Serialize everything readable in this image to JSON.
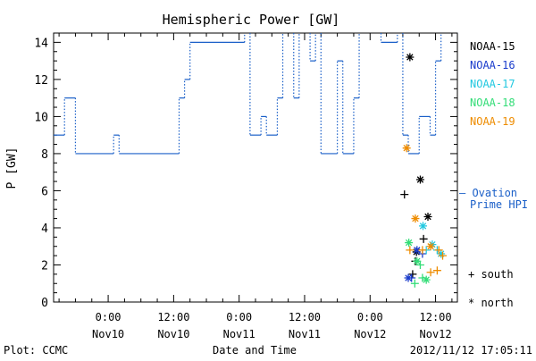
{
  "chart_data": {
    "type": "line",
    "title": "Hemispheric Power [GW]",
    "xlabel": "Date and Time",
    "ylabel": "P [GW]",
    "ylim": [
      0,
      14.5
    ],
    "xlim_hours": [
      -10,
      64
    ],
    "x_units": "hours since 2012-11-10 00:00 UT",
    "yticks": [
      0,
      2,
      4,
      6,
      8,
      10,
      12,
      14
    ],
    "xticks": [
      {
        "h": 0,
        "time": "0:00",
        "date": "Nov10"
      },
      {
        "h": 12,
        "time": "12:00",
        "date": "Nov10"
      },
      {
        "h": 24,
        "time": "0:00",
        "date": "Nov11"
      },
      {
        "h": 36,
        "time": "12:00",
        "date": "Nov11"
      },
      {
        "h": 48,
        "time": "0:00",
        "date": "Nov12"
      },
      {
        "h": 60,
        "time": "12:00",
        "date": "Nov12"
      }
    ],
    "ovation_label_line1": "– Ovation",
    "ovation_label_line2": "Prime HPI",
    "ovation_series": [
      [
        -10,
        9
      ],
      [
        -8,
        11
      ],
      [
        -6,
        8
      ],
      [
        1,
        9
      ],
      [
        2,
        8
      ],
      [
        13,
        11
      ],
      [
        14,
        12
      ],
      [
        15,
        14
      ],
      [
        25,
        15
      ],
      [
        26,
        9
      ],
      [
        28,
        10
      ],
      [
        29,
        9
      ],
      [
        31,
        11
      ],
      [
        32,
        15
      ],
      [
        34,
        11
      ],
      [
        35,
        15
      ],
      [
        37,
        13
      ],
      [
        38,
        15
      ],
      [
        39,
        8
      ],
      [
        42,
        13
      ],
      [
        43,
        8
      ],
      [
        45,
        11
      ],
      [
        46,
        15
      ],
      [
        50,
        14
      ],
      [
        53,
        15
      ],
      [
        54,
        9
      ],
      [
        55,
        8
      ],
      [
        57,
        10
      ],
      [
        59,
        9
      ],
      [
        60,
        13
      ],
      [
        61,
        15
      ],
      [
        64,
        15
      ]
    ],
    "satellites": [
      {
        "name": "NOAA-15",
        "color": "#000000",
        "north": [
          [
            55.3,
            13.2
          ],
          [
            57.2,
            6.6
          ],
          [
            58.6,
            4.6
          ],
          [
            56.5,
            2.7
          ]
        ],
        "south": [
          [
            54.3,
            5.8
          ],
          [
            57.8,
            3.4
          ],
          [
            56.3,
            2.2
          ],
          [
            55.8,
            1.5
          ]
        ]
      },
      {
        "name": "NOAA-16",
        "color": "#1a3ccc",
        "north": [
          [
            55.0,
            1.3
          ],
          [
            56.6,
            2.8
          ]
        ],
        "south": [
          [
            55.6,
            1.3
          ],
          [
            57.6,
            2.6
          ]
        ]
      },
      {
        "name": "NOAA-17",
        "color": "#22c8e0",
        "north": [
          [
            57.7,
            4.1
          ],
          [
            59.4,
            3.1
          ],
          [
            61.0,
            2.6
          ]
        ],
        "south": [
          [
            58.3,
            2.8
          ],
          [
            60.3,
            2.8
          ]
        ]
      },
      {
        "name": "NOAA-18",
        "color": "#33dd77",
        "north": [
          [
            55.1,
            3.2
          ],
          [
            56.6,
            2.2
          ],
          [
            58.3,
            1.2
          ]
        ],
        "south": [
          [
            57.2,
            2.0
          ],
          [
            56.2,
            1.0
          ],
          [
            57.6,
            1.3
          ]
        ]
      },
      {
        "name": "NOAA-19",
        "color": "#ee8c00",
        "north": [
          [
            54.7,
            8.3
          ],
          [
            56.3,
            4.5
          ],
          [
            59.1,
            3.0
          ]
        ],
        "south": [
          [
            55.3,
            2.8
          ],
          [
            57.6,
            2.8
          ],
          [
            60.6,
            2.8
          ],
          [
            61.3,
            2.5
          ],
          [
            59.1,
            1.6
          ],
          [
            60.3,
            1.7
          ]
        ]
      }
    ],
    "symbol_legend": {
      "south": "+ south",
      "north": "* north"
    },
    "footer_left": "Plot: CCMC",
    "footer_right": "2012/11/12 17:05:11"
  },
  "colors": {
    "axes": "#000000",
    "ovation": "#1a5fc8",
    "background": "#ffffff"
  }
}
